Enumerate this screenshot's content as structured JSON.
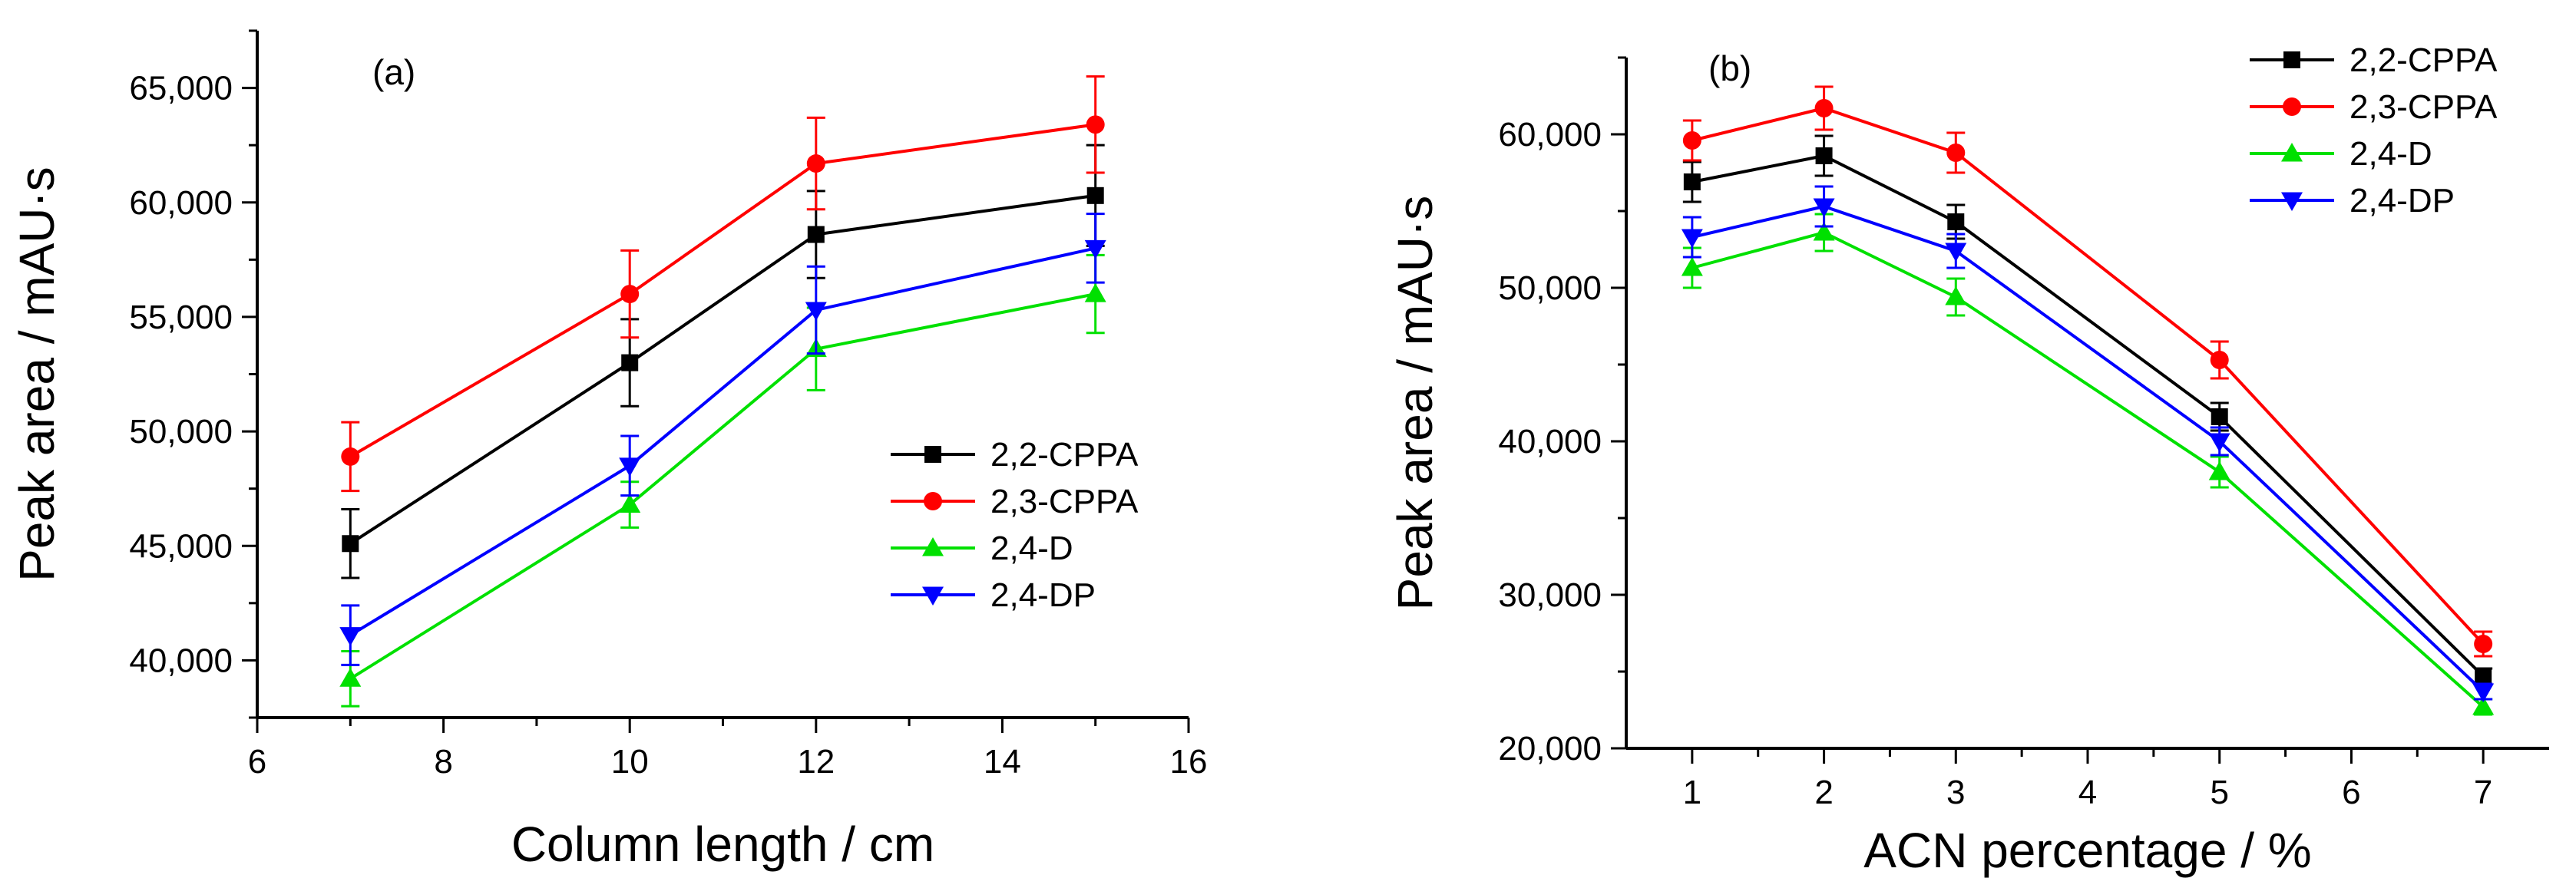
{
  "chart_data": [
    {
      "type": "line",
      "panel_label": "(a)",
      "xlabel": "Column length / cm",
      "ylabel": "Peak area / mAU·s",
      "xlim": [
        6,
        16
      ],
      "ylim": [
        37500,
        67500
      ],
      "x_ticks": [
        6,
        8,
        10,
        12,
        14,
        16
      ],
      "x_tick_labels": [
        "6",
        "8",
        "10",
        "12",
        "14",
        "16"
      ],
      "y_ticks": [
        40000,
        45000,
        50000,
        55000,
        60000,
        65000
      ],
      "y_tick_labels": [
        "40,000",
        "45,000",
        "50,000",
        "55,000",
        "60,000",
        "65,000"
      ],
      "grid": false,
      "legend_position": "lower-right",
      "x": [
        7,
        10,
        12,
        15
      ],
      "series": [
        {
          "name": "2,2-CPPA",
          "color": "#000000",
          "marker": "square",
          "values": [
            45100,
            53000,
            58600,
            60300
          ],
          "errors": [
            1500,
            1900,
            1900,
            2200
          ]
        },
        {
          "name": "2,3-CPPA",
          "color": "#ff0000",
          "marker": "circle",
          "values": [
            48900,
            56000,
            61700,
            63400
          ],
          "errors": [
            1500,
            1900,
            2000,
            2100
          ]
        },
        {
          "name": "2,4-D",
          "color": "#00e000",
          "marker": "triangle-up",
          "values": [
            39200,
            46800,
            53600,
            56000
          ],
          "errors": [
            1200,
            1000,
            1800,
            1700
          ]
        },
        {
          "name": "2,4-DP",
          "color": "#0000ff",
          "marker": "triangle-down",
          "values": [
            41100,
            48500,
            55300,
            58000
          ],
          "errors": [
            1300,
            1300,
            1900,
            1500
          ]
        }
      ]
    },
    {
      "type": "line",
      "panel_label": "(b)",
      "xlabel": "ACN percentage / %",
      "ylabel": "Peak area / mAU·s",
      "xlim": [
        0.5,
        7.5
      ],
      "ylim": [
        20000,
        65000
      ],
      "x_ticks": [
        1,
        2,
        3,
        4,
        5,
        6,
        7
      ],
      "x_tick_labels": [
        "1",
        "2",
        "3",
        "4",
        "5",
        "6",
        "7"
      ],
      "y_ticks": [
        20000,
        30000,
        40000,
        50000,
        60000
      ],
      "y_tick_labels": [
        "20,000",
        "30,000",
        "40,000",
        "50,000",
        "60,000"
      ],
      "grid": false,
      "legend_position": "top-right",
      "x": [
        1,
        2,
        3,
        5,
        7
      ],
      "series": [
        {
          "name": "2,2-CPPA",
          "color": "#000000",
          "marker": "square",
          "values": [
            56900,
            58600,
            54300,
            41600,
            24700
          ],
          "errors": [
            1300,
            1300,
            1100,
            900,
            500
          ]
        },
        {
          "name": "2,3-CPPA",
          "color": "#ff0000",
          "marker": "circle",
          "values": [
            59600,
            61700,
            58800,
            45300,
            26800
          ],
          "errors": [
            1300,
            1400,
            1300,
            1200,
            800
          ]
        },
        {
          "name": "2,4-D",
          "color": "#00e000",
          "marker": "triangle-up",
          "values": [
            51300,
            53600,
            49400,
            38000,
            22700
          ],
          "errors": [
            1300,
            1200,
            1200,
            1000,
            500
          ]
        },
        {
          "name": "2,4-DP",
          "color": "#0000ff",
          "marker": "triangle-down",
          "values": [
            53300,
            55300,
            52400,
            40000,
            23700
          ],
          "errors": [
            1300,
            1300,
            1100,
            900,
            500
          ]
        }
      ]
    }
  ]
}
